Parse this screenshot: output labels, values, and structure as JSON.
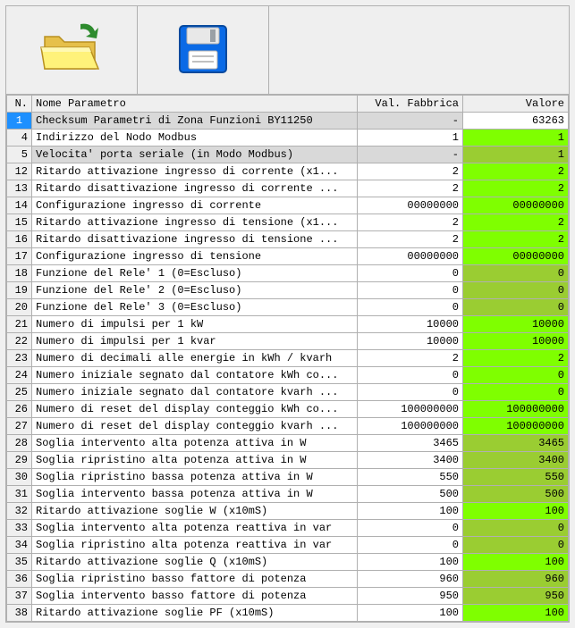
{
  "toolbar": {
    "open": {
      "label": "Open",
      "icon": "folder-open"
    },
    "save": {
      "label": "Save",
      "icon": "floppy-disk"
    }
  },
  "columns": {
    "n": "N.",
    "name": "Nome Parametro",
    "factory": "Val. Fabbrica",
    "value": "Valore"
  },
  "colors": {
    "selected_bg": "#1e90ff",
    "gray_bg": "#d9d9d9",
    "green_bright": "#7fff00",
    "green_olive": "#9acd32",
    "border": "#b0b0b0"
  },
  "rows": [
    {
      "n": 1,
      "name": "Checksum Parametri di Zona Funzioni BY11250",
      "factory": "-",
      "value": "63263",
      "gray": true,
      "selected": true,
      "valstyle": ""
    },
    {
      "n": 4,
      "name": "Indirizzo del Nodo Modbus",
      "factory": "1",
      "value": "1",
      "gray": false,
      "valstyle": "g1"
    },
    {
      "n": 5,
      "name": "Velocita' porta seriale (in Modo Modbus)",
      "factory": "-",
      "value": "1",
      "gray": true,
      "valstyle": "g2"
    },
    {
      "n": 12,
      "name": "Ritardo attivazione ingresso di corrente (x1...",
      "factory": "2",
      "value": "2",
      "gray": false,
      "valstyle": "g1"
    },
    {
      "n": 13,
      "name": "Ritardo disattivazione ingresso di corrente ...",
      "factory": "2",
      "value": "2",
      "gray": false,
      "valstyle": "g1"
    },
    {
      "n": 14,
      "name": "Configurazione ingresso di corrente",
      "factory": "00000000",
      "value": "00000000",
      "gray": false,
      "valstyle": "g1"
    },
    {
      "n": 15,
      "name": "Ritardo attivazione ingresso di tensione (x1...",
      "factory": "2",
      "value": "2",
      "gray": false,
      "valstyle": "g1"
    },
    {
      "n": 16,
      "name": "Ritardo disattivazione ingresso di tensione ...",
      "factory": "2",
      "value": "2",
      "gray": false,
      "valstyle": "g1"
    },
    {
      "n": 17,
      "name": "Configurazione ingresso di tensione",
      "factory": "00000000",
      "value": "00000000",
      "gray": false,
      "valstyle": "g1"
    },
    {
      "n": 18,
      "name": "Funzione del Rele' 1 (0=Escluso)",
      "factory": "0",
      "value": "0",
      "gray": false,
      "valstyle": "g2"
    },
    {
      "n": 19,
      "name": "Funzione del Rele' 2 (0=Escluso)",
      "factory": "0",
      "value": "0",
      "gray": false,
      "valstyle": "g2"
    },
    {
      "n": 20,
      "name": "Funzione del Rele' 3 (0=Escluso)",
      "factory": "0",
      "value": "0",
      "gray": false,
      "valstyle": "g2"
    },
    {
      "n": 21,
      "name": "Numero di impulsi per 1 kW",
      "factory": "10000",
      "value": "10000",
      "gray": false,
      "valstyle": "g1"
    },
    {
      "n": 22,
      "name": "Numero di impulsi per 1 kvar",
      "factory": "10000",
      "value": "10000",
      "gray": false,
      "valstyle": "g1"
    },
    {
      "n": 23,
      "name": "Numero di decimali alle energie in kWh / kvarh",
      "factory": "2",
      "value": "2",
      "gray": false,
      "valstyle": "g1"
    },
    {
      "n": 24,
      "name": "Numero iniziale segnato dal contatore kWh co...",
      "factory": "0",
      "value": "0",
      "gray": false,
      "valstyle": "g1"
    },
    {
      "n": 25,
      "name": "Numero iniziale segnato dal contatore kvarh ...",
      "factory": "0",
      "value": "0",
      "gray": false,
      "valstyle": "g1"
    },
    {
      "n": 26,
      "name": "Numero di reset del display conteggio kWh co...",
      "factory": "100000000",
      "value": "100000000",
      "gray": false,
      "valstyle": "g1"
    },
    {
      "n": 27,
      "name": "Numero di reset del display conteggio kvarh ...",
      "factory": "100000000",
      "value": "100000000",
      "gray": false,
      "valstyle": "g1"
    },
    {
      "n": 28,
      "name": "Soglia intervento alta potenza attiva in W",
      "factory": "3465",
      "value": "3465",
      "gray": false,
      "valstyle": "g2"
    },
    {
      "n": 29,
      "name": "Soglia ripristino alta potenza attiva in W",
      "factory": "3400",
      "value": "3400",
      "gray": false,
      "valstyle": "g2"
    },
    {
      "n": 30,
      "name": "Soglia ripristino bassa potenza attiva in W",
      "factory": "550",
      "value": "550",
      "gray": false,
      "valstyle": "g2"
    },
    {
      "n": 31,
      "name": "Soglia intervento bassa potenza attiva in W",
      "factory": "500",
      "value": "500",
      "gray": false,
      "valstyle": "g2"
    },
    {
      "n": 32,
      "name": "Ritardo attivazione soglie W (x10mS)",
      "factory": "100",
      "value": "100",
      "gray": false,
      "valstyle": "g1"
    },
    {
      "n": 33,
      "name": "Soglia intervento alta potenza reattiva in var",
      "factory": "0",
      "value": "0",
      "gray": false,
      "valstyle": "g2"
    },
    {
      "n": 34,
      "name": "Soglia ripristino alta potenza reattiva in var",
      "factory": "0",
      "value": "0",
      "gray": false,
      "valstyle": "g2"
    },
    {
      "n": 35,
      "name": "Ritardo attivazione soglie Q (x10mS)",
      "factory": "100",
      "value": "100",
      "gray": false,
      "valstyle": "g1"
    },
    {
      "n": 36,
      "name": "Soglia ripristino basso fattore di potenza",
      "factory": "960",
      "value": "960",
      "gray": false,
      "valstyle": "g2"
    },
    {
      "n": 37,
      "name": "Soglia intervento basso fattore di potenza",
      "factory": "950",
      "value": "950",
      "gray": false,
      "valstyle": "g2"
    },
    {
      "n": 38,
      "name": "Ritardo attivazione soglie PF (x10mS)",
      "factory": "100",
      "value": "100",
      "gray": false,
      "valstyle": "g1"
    }
  ]
}
